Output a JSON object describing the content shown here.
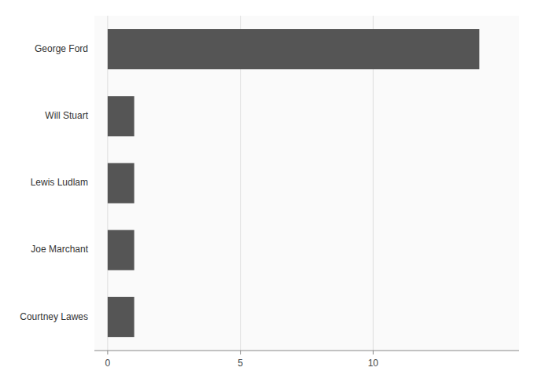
{
  "chart_data": {
    "type": "bar",
    "orientation": "horizontal",
    "categories": [
      "Courtney Lawes",
      "Joe Marchant",
      "Lewis Ludlam",
      "Will Stuart",
      "George Ford"
    ],
    "values": [
      1,
      1,
      1,
      1,
      14
    ],
    "color": "#555555",
    "xlim": [
      -0.5,
      15.5
    ],
    "xticks": [
      0,
      5,
      10
    ],
    "grid": true
  }
}
